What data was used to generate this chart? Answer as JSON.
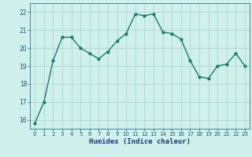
{
  "x": [
    0,
    1,
    2,
    3,
    4,
    5,
    6,
    7,
    8,
    9,
    10,
    11,
    12,
    13,
    14,
    15,
    16,
    17,
    18,
    19,
    20,
    21,
    22,
    23
  ],
  "y": [
    15.8,
    17.0,
    19.3,
    20.6,
    20.6,
    20.0,
    19.7,
    19.4,
    19.8,
    20.4,
    20.8,
    21.9,
    21.8,
    21.9,
    20.9,
    20.8,
    20.5,
    19.3,
    18.4,
    18.3,
    19.0,
    19.1,
    19.7,
    19.0
  ],
  "xlabel": "Humidex (Indice chaleur)",
  "ylim": [
    15.5,
    22.5
  ],
  "xlim": [
    -0.5,
    23.5
  ],
  "yticks": [
    16,
    17,
    18,
    19,
    20,
    21,
    22
  ],
  "xticks": [
    0,
    1,
    2,
    3,
    4,
    5,
    6,
    7,
    8,
    9,
    10,
    11,
    12,
    13,
    14,
    15,
    16,
    17,
    18,
    19,
    20,
    21,
    22,
    23
  ],
  "line_color": "#1a7a6a",
  "marker_color": "#1a7a6a",
  "bg_color": "#cff0eb",
  "grid_color": "#aad8d0"
}
